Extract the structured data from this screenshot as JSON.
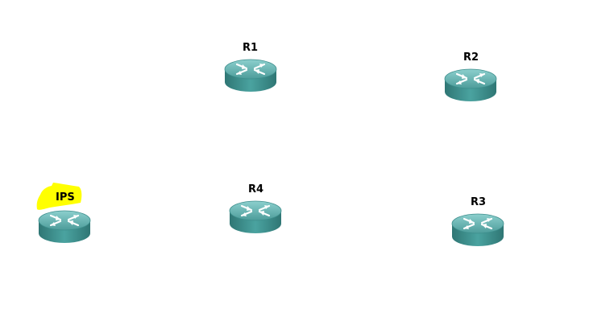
{
  "topology": {
    "routers": [
      {
        "id": "r1",
        "label": "R1",
        "icon": "router-icon"
      },
      {
        "id": "r2",
        "label": "R2",
        "icon": "router-icon"
      },
      {
        "id": "ips",
        "label": "IPS",
        "icon": "router-icon",
        "highlight_color": "#ffff00"
      },
      {
        "id": "r4",
        "label": "R4",
        "icon": "router-icon"
      },
      {
        "id": "r3",
        "label": "R3",
        "icon": "router-icon"
      }
    ]
  },
  "colors": {
    "router_top": "#5aa9a7",
    "router_side": "#3a8c8a",
    "router_rim": "#2f7674",
    "arrow": "#ffffff",
    "label": "#000000",
    "highlight": "#ffff00"
  }
}
